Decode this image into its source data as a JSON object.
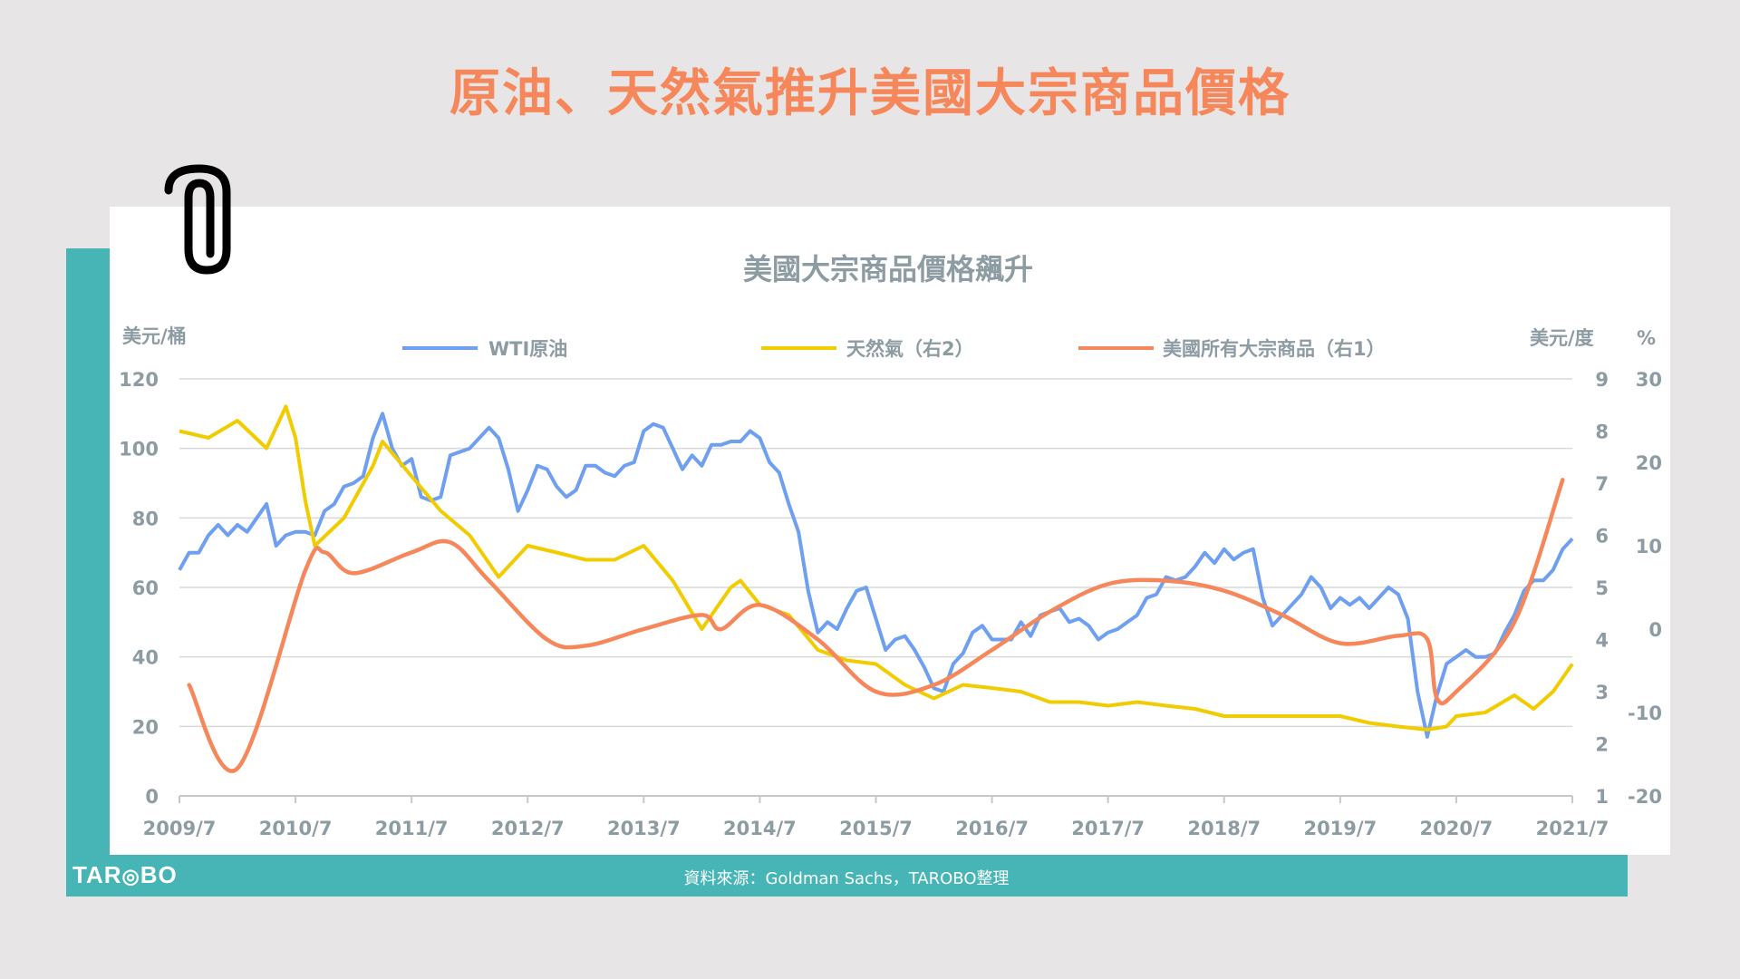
{
  "page_title": "原油、天然氣推升美國大宗商品價格",
  "source": "資料來源：Goldman Sachs，TAROBO整理",
  "logo": "TAROBO",
  "colors": {
    "title": "#f5875a",
    "accent": "#47b5b5",
    "wti": "#6f9ff0",
    "gas": "#f0cc00",
    "commodities": "#f5875a"
  },
  "icons": [
    "paperclip-icon"
  ],
  "chart_data": {
    "type": "line",
    "title": "美國大宗商品價格飆升",
    "left_axis": {
      "label": "美元/桶",
      "ylim": [
        0,
        120
      ],
      "ticks": [
        "0",
        "20",
        "40",
        "60",
        "80",
        "100",
        "120"
      ]
    },
    "right_axis_1": {
      "label": "%",
      "ylim": [
        -20,
        30
      ],
      "ticks": [
        "-20",
        "-10",
        "0",
        "10",
        "20",
        "30"
      ]
    },
    "right_axis_2": {
      "label": "美元/度",
      "ylim": [
        1,
        9
      ],
      "ticks": [
        "1",
        "2",
        "3",
        "4",
        "5",
        "6",
        "7",
        "8",
        "9"
      ]
    },
    "x_ticks": [
      "2009/7",
      "2010/7",
      "2011/7",
      "2012/7",
      "2013/7",
      "2014/7",
      "2015/7",
      "2016/7",
      "2017/7",
      "2018/7",
      "2019/7",
      "2020/7",
      "2021/7"
    ],
    "grid": true,
    "legend_position": "top",
    "series": [
      {
        "name": "WTI原油",
        "axis": "left",
        "start": "2009/7",
        "frequency": "monthly",
        "values": [
          65,
          70,
          70,
          75,
          78,
          75,
          78,
          76,
          80,
          84,
          72,
          75,
          76,
          76,
          75,
          82,
          84,
          89,
          90,
          92,
          103,
          110,
          100,
          95,
          97,
          86,
          85,
          86,
          98,
          99,
          100,
          103,
          106,
          103,
          94,
          82,
          88,
          95,
          94,
          89,
          86,
          88,
          95,
          95,
          93,
          92,
          95,
          96,
          105,
          107,
          106,
          100,
          94,
          98,
          95,
          101,
          101,
          102,
          102,
          105,
          103,
          96,
          93,
          84,
          76,
          59,
          47,
          50,
          48,
          54,
          59,
          60,
          51,
          42,
          45,
          46,
          42,
          37,
          31,
          30,
          38,
          41,
          47,
          49,
          45,
          45,
          45,
          50,
          46,
          52,
          53,
          54,
          50,
          51,
          49,
          45,
          47,
          48,
          50,
          52,
          57,
          58,
          63,
          62,
          63,
          66,
          70,
          67,
          71,
          68,
          70,
          71,
          57,
          49,
          52,
          55,
          58,
          63,
          60,
          54,
          57,
          55,
          57,
          54,
          57,
          60,
          58,
          51,
          30,
          17,
          29,
          38,
          40,
          42,
          40,
          40,
          41,
          47,
          52,
          59,
          62,
          62,
          65,
          71,
          74
        ]
      },
      {
        "name": "天然氣（右2）",
        "axis": "right_2",
        "points": [
          [
            "2009/7",
            8.0
          ],
          [
            "2009/10",
            7.87
          ],
          [
            "2010/1",
            8.2
          ],
          [
            "2010/4",
            7.67
          ],
          [
            "2010/6",
            8.47
          ],
          [
            "2010/7",
            7.87
          ],
          [
            "2010/8",
            6.67
          ],
          [
            "2010/9",
            5.8
          ],
          [
            "2010/12",
            6.33
          ],
          [
            "2011/3",
            7.33
          ],
          [
            "2011/4",
            7.8
          ],
          [
            "2011/7",
            7.13
          ],
          [
            "2011/10",
            6.47
          ],
          [
            "2012/1",
            6.0
          ],
          [
            "2012/4",
            5.2
          ],
          [
            "2012/7",
            5.8
          ],
          [
            "2012/10",
            5.67
          ],
          [
            "2013/1",
            5.53
          ],
          [
            "2013/4",
            5.53
          ],
          [
            "2013/7",
            5.8
          ],
          [
            "2013/10",
            5.13
          ],
          [
            "2014/1",
            4.2
          ],
          [
            "2014/4",
            5.0
          ],
          [
            "2014/5",
            5.13
          ],
          [
            "2014/7",
            4.67
          ],
          [
            "2014/10",
            4.47
          ],
          [
            "2015/1",
            3.8
          ],
          [
            "2015/4",
            3.6
          ],
          [
            "2015/7",
            3.53
          ],
          [
            "2015/10",
            3.13
          ],
          [
            "2016/1",
            2.87
          ],
          [
            "2016/4",
            3.13
          ],
          [
            "2016/7",
            3.07
          ],
          [
            "2016/10",
            3.0
          ],
          [
            "2017/1",
            2.8
          ],
          [
            "2017/4",
            2.8
          ],
          [
            "2017/7",
            2.73
          ],
          [
            "2017/10",
            2.8
          ],
          [
            "2018/1",
            2.73
          ],
          [
            "2018/4",
            2.67
          ],
          [
            "2018/7",
            2.53
          ],
          [
            "2018/10",
            2.53
          ],
          [
            "2019/1",
            2.53
          ],
          [
            "2019/4",
            2.53
          ],
          [
            "2019/7",
            2.53
          ],
          [
            "2019/10",
            2.4
          ],
          [
            "2020/1",
            2.33
          ],
          [
            "2020/4",
            2.27
          ],
          [
            "2020/6",
            2.33
          ],
          [
            "2020/7",
            2.53
          ],
          [
            "2020/10",
            2.6
          ],
          [
            "2021/1",
            2.93
          ],
          [
            "2021/3",
            2.67
          ],
          [
            "2021/5",
            3.0
          ],
          [
            "2021/7",
            3.53
          ]
        ]
      },
      {
        "name": "美國所有大宗商品（右1）",
        "axis": "right_1",
        "points": [
          [
            "2009/8",
            -6.7
          ],
          [
            "2010/1",
            -16.7
          ],
          [
            "2010/8",
            7
          ],
          [
            "2010/10",
            9.2
          ],
          [
            "2011/1",
            6.7
          ],
          [
            "2011/7",
            9.2
          ],
          [
            "2011/11",
            10.4
          ],
          [
            "2012/3",
            5.8
          ],
          [
            "2012/9",
            -1.25
          ],
          [
            "2013/1",
            -2
          ],
          [
            "2013/7",
            0
          ],
          [
            "2014/1",
            1.7
          ],
          [
            "2014/3",
            0
          ],
          [
            "2014/7",
            2.9
          ],
          [
            "2015/1",
            -1.25
          ],
          [
            "2015/7",
            -7.5
          ],
          [
            "2016/1",
            -6.7
          ],
          [
            "2016/7",
            -2.5
          ],
          [
            "2017/1",
            2.1
          ],
          [
            "2017/7",
            5.4
          ],
          [
            "2018/1",
            5.8
          ],
          [
            "2018/7",
            4.6
          ],
          [
            "2019/1",
            1.7
          ],
          [
            "2019/7",
            -1.7
          ],
          [
            "2020/1",
            -0.8
          ],
          [
            "2020/4",
            -1.2
          ],
          [
            "2020/5",
            -8.3
          ],
          [
            "2020/7",
            -7.5
          ],
          [
            "2021/1",
            0.8
          ],
          [
            "2021/6",
            17.9
          ]
        ]
      }
    ]
  }
}
